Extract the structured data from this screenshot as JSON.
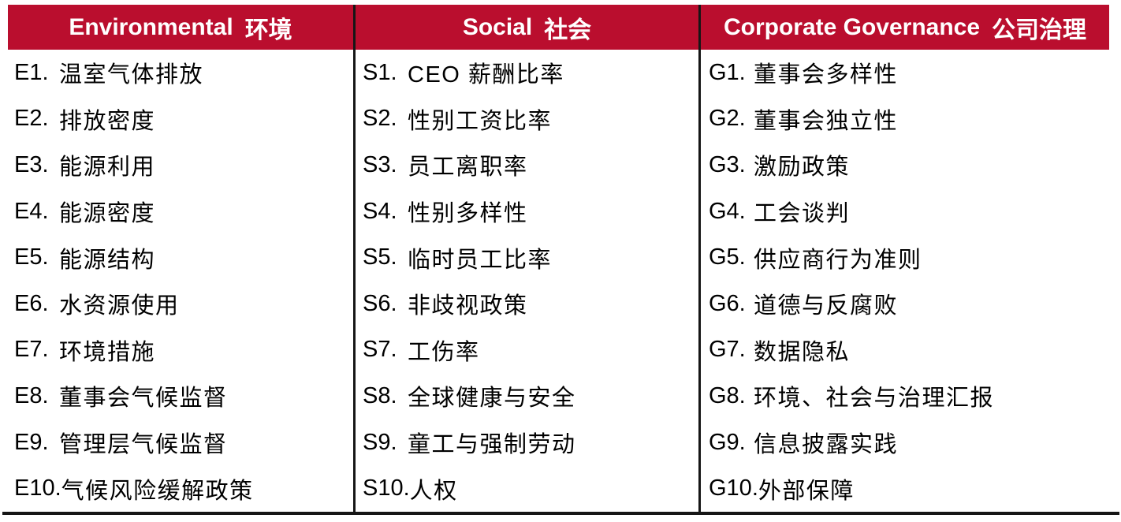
{
  "colors": {
    "header_bg": "#BA0E2E",
    "header_text": "#FFFFFF",
    "line": "#161616",
    "body_text": "#000000",
    "page_bg": "#FFFFFF"
  },
  "table": {
    "columns": [
      {
        "id": "environmental",
        "header_en": "Environmental",
        "header_zh": "环境",
        "items": [
          {
            "code": "E1.",
            "label": "温室气体排放"
          },
          {
            "code": "E2.",
            "label": "排放密度"
          },
          {
            "code": "E3.",
            "label": "能源利用"
          },
          {
            "code": "E4.",
            "label": "能源密度"
          },
          {
            "code": "E5.",
            "label": "能源结构"
          },
          {
            "code": "E6.",
            "label": "水资源使用"
          },
          {
            "code": "E7.",
            "label": "环境措施"
          },
          {
            "code": "E8.",
            "label": "董事会气候监督"
          },
          {
            "code": "E9.",
            "label": "管理层气候监督"
          },
          {
            "code": "E10.",
            "label": "气候风险缓解政策"
          }
        ]
      },
      {
        "id": "social",
        "header_en": "Social",
        "header_zh": "社会",
        "items": [
          {
            "code": "S1.",
            "label": "CEO 薪酬比率"
          },
          {
            "code": "S2.",
            "label": "性别工资比率"
          },
          {
            "code": "S3.",
            "label": "员工离职率"
          },
          {
            "code": "S4.",
            "label": "性别多样性"
          },
          {
            "code": "S5.",
            "label": "临时员工比率"
          },
          {
            "code": "S6.",
            "label": "非歧视政策"
          },
          {
            "code": "S7.",
            "label": "工伤率"
          },
          {
            "code": "S8.",
            "label": "全球健康与安全"
          },
          {
            "code": "S9.",
            "label": "童工与强制劳动"
          },
          {
            "code": "S10.",
            "label": "人权"
          }
        ]
      },
      {
        "id": "corporate-governance",
        "header_en": "Corporate Governance",
        "header_zh": "公司治理",
        "items": [
          {
            "code": "G1.",
            "label": "董事会多样性"
          },
          {
            "code": "G2.",
            "label": "董事会独立性"
          },
          {
            "code": "G3.",
            "label": "激励政策"
          },
          {
            "code": "G4.",
            "label": "工会谈判"
          },
          {
            "code": "G5.",
            "label": "供应商行为准则"
          },
          {
            "code": "G6.",
            "label": "道德与反腐败"
          },
          {
            "code": "G7.",
            "label": "数据隐私"
          },
          {
            "code": "G8.",
            "label": "环境、社会与治理汇报"
          },
          {
            "code": "G9.",
            "label": "信息披露实践"
          },
          {
            "code": "G10.",
            "label": "外部保障"
          }
        ]
      }
    ]
  }
}
